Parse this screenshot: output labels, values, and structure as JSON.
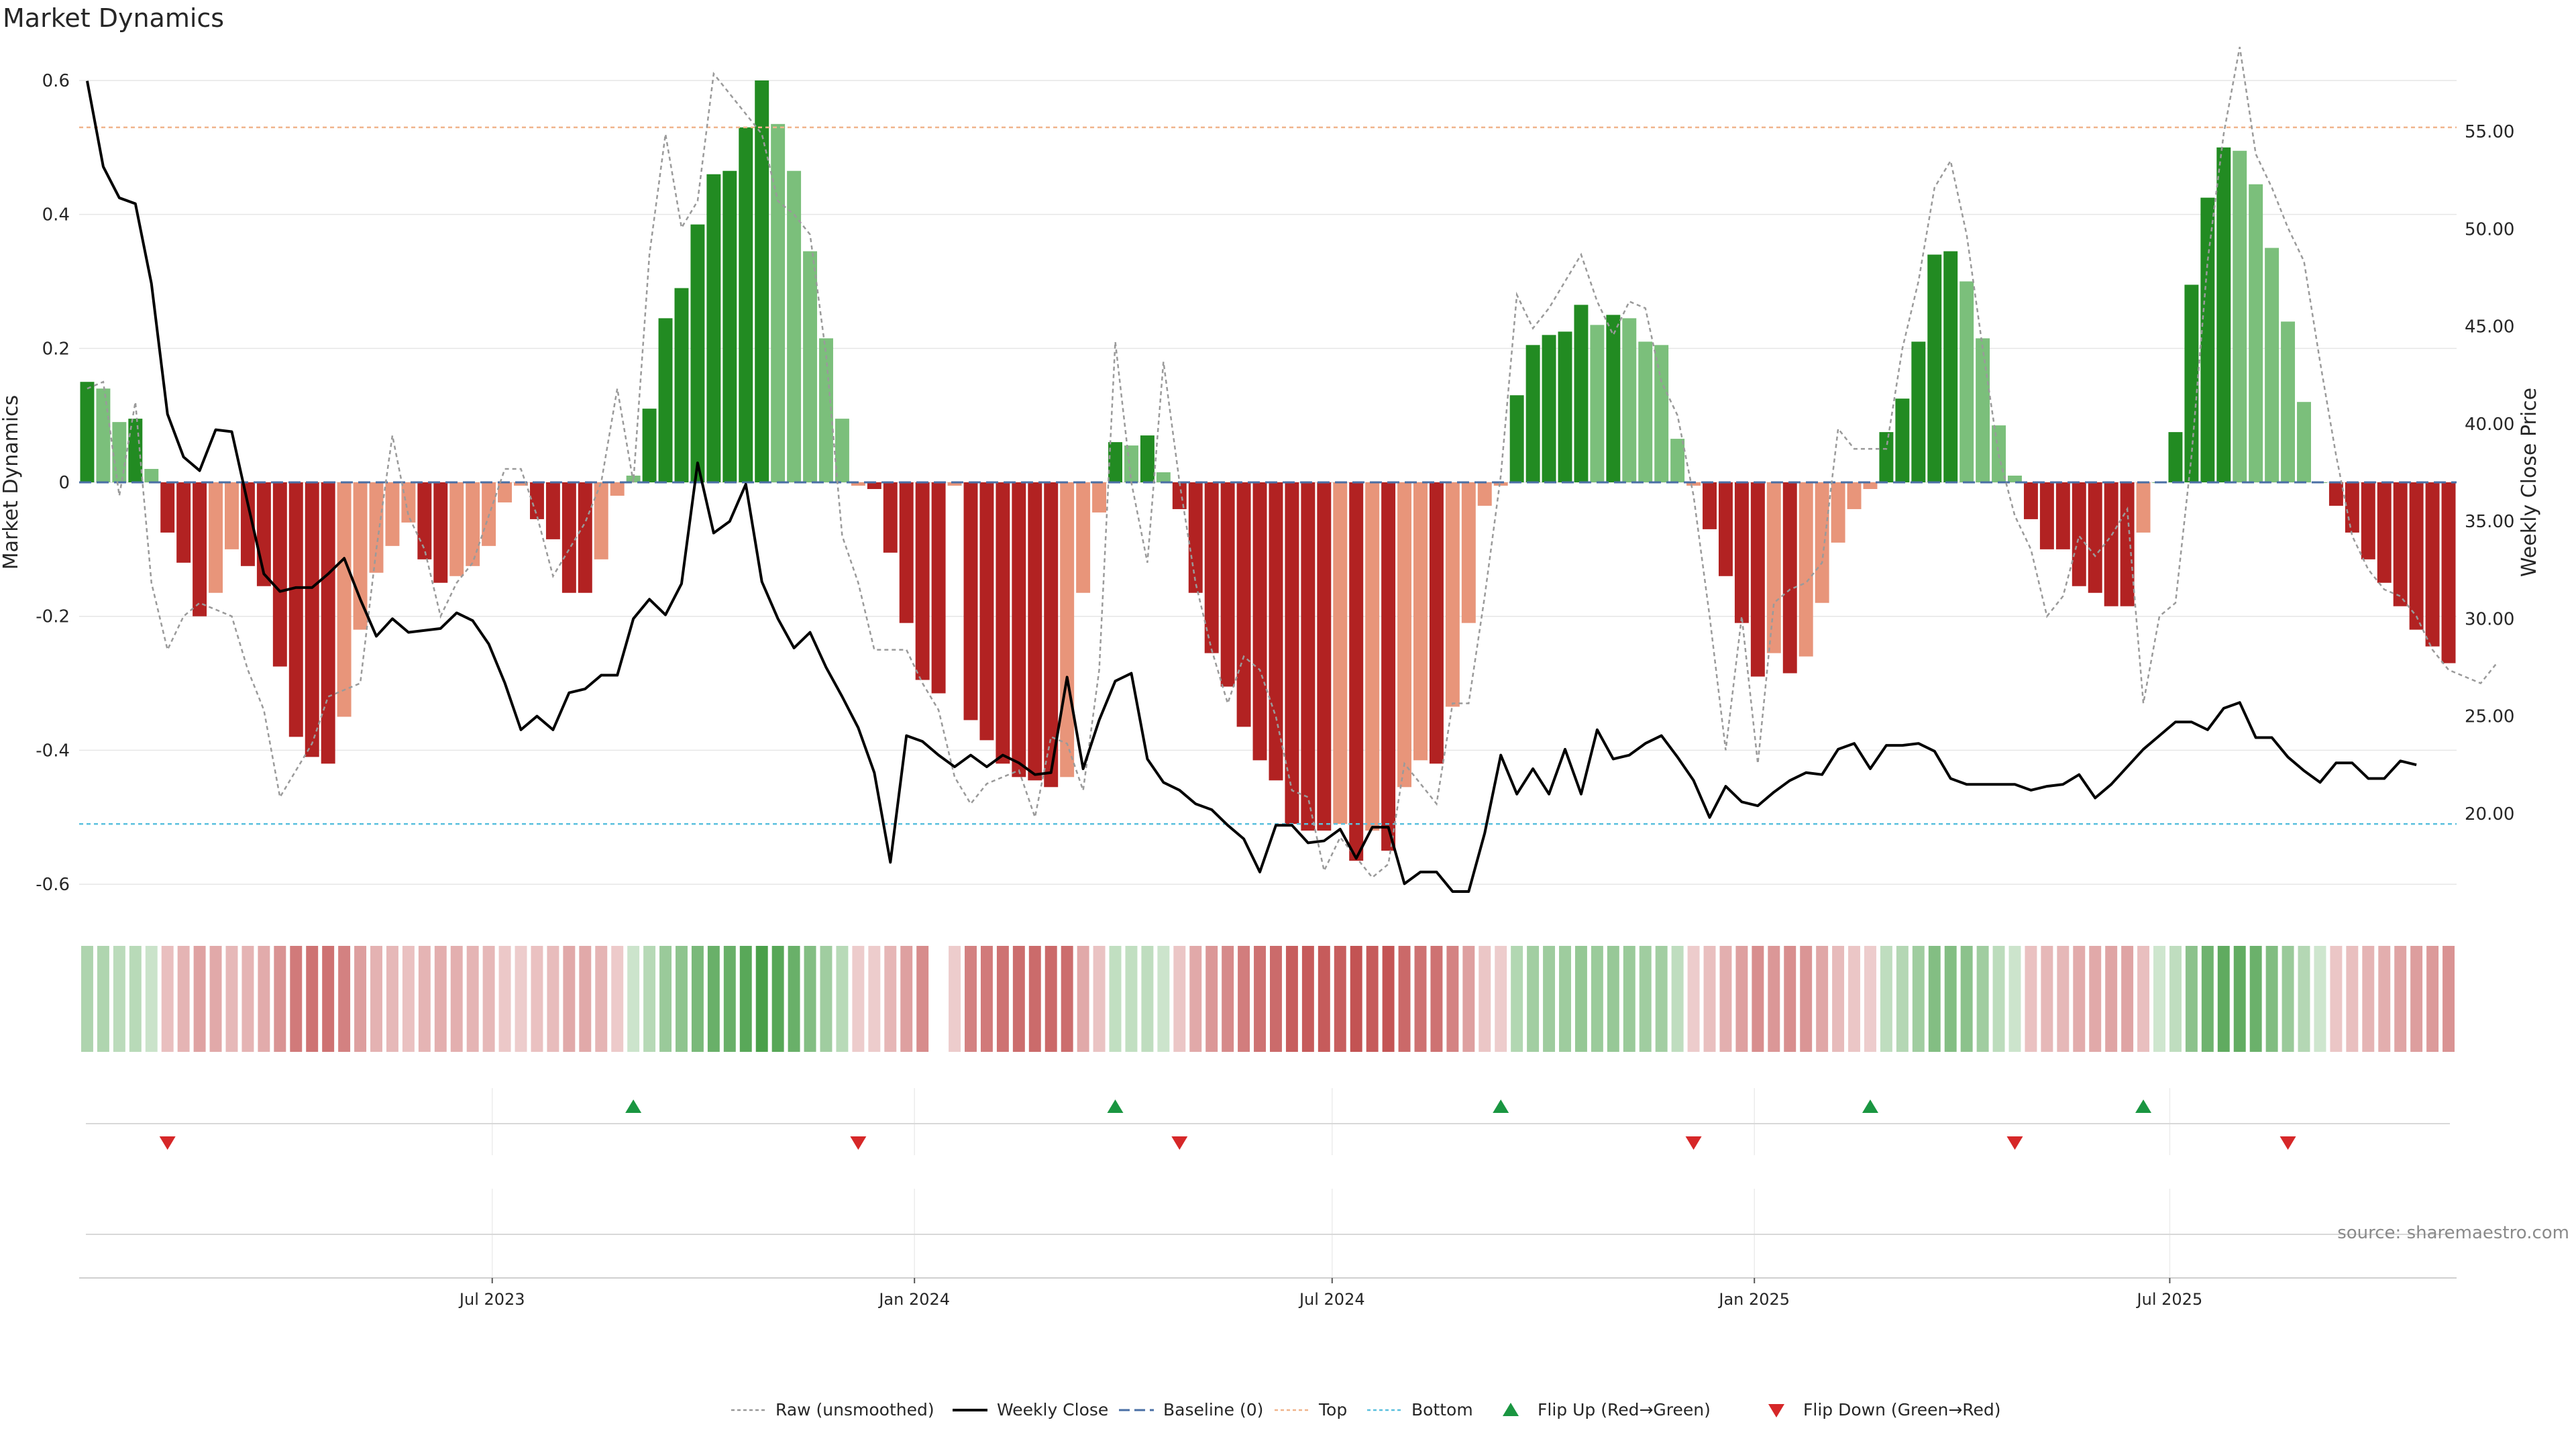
{
  "chart_data": {
    "type": "bar",
    "title": "Market Dynamics",
    "ylabel": "Market Dynamics",
    "y2label": "Weekly Close Price",
    "ylim": [
      -0.64,
      0.64
    ],
    "y2lim": [
      15.0,
      59.0
    ],
    "yticks": [
      {
        "v": 0.6,
        "label": "0.6"
      },
      {
        "v": 0.4,
        "label": "0.4"
      },
      {
        "v": 0.2,
        "label": "0.2"
      },
      {
        "v": 0,
        "label": "0"
      },
      {
        "v": -0.2,
        "label": "-0.2"
      },
      {
        "v": -0.4,
        "label": "-0.4"
      },
      {
        "v": -0.6,
        "label": "-0.6"
      }
    ],
    "y2ticks": [
      {
        "v": 55,
        "label": "55.00"
      },
      {
        "v": 50,
        "label": "50.00"
      },
      {
        "v": 45,
        "label": "45.00"
      },
      {
        "v": 40,
        "label": "40.00"
      },
      {
        "v": 35,
        "label": "35.00"
      },
      {
        "v": 30,
        "label": "30.00"
      },
      {
        "v": 25,
        "label": "25.00"
      },
      {
        "v": 20,
        "label": "20.00"
      }
    ],
    "x_start": "2023-01-02",
    "x_end": "2025-11-03",
    "xticks": [
      {
        "date": "2023-07-01",
        "label": "Jul 2023"
      },
      {
        "date": "2024-01-01",
        "label": "Jan 2024"
      },
      {
        "date": "2024-07-01",
        "label": "Jul 2024"
      },
      {
        "date": "2025-01-01",
        "label": "Jan 2025"
      },
      {
        "date": "2025-07-01",
        "label": "Jul 2025"
      }
    ],
    "top_line": 0.53,
    "bottom_line": -0.51,
    "baseline": 0,
    "source": "source: sharemaestro.com",
    "colors": {
      "up_strong": "#228b22",
      "up_fading": "#7bbf7b",
      "down_strong": "#b22222",
      "down_fading": "#e8957a",
      "raw": "#9a9a9a",
      "close": "#000000",
      "baseline": "#4a6fa5",
      "top": "#f0b48c",
      "bottom": "#5bc0de",
      "flip_up": "#1a9641",
      "flip_down": "#d62728"
    },
    "series": [
      {
        "name": "Market Dynamics",
        "values": [
          0.15,
          0.14,
          0.09,
          0.095,
          0.02,
          -0.075,
          -0.12,
          -0.2,
          -0.165,
          -0.1,
          -0.125,
          -0.155,
          -0.275,
          -0.38,
          -0.41,
          -0.42,
          -0.35,
          -0.22,
          -0.135,
          -0.095,
          -0.06,
          -0.115,
          -0.15,
          -0.14,
          -0.125,
          -0.095,
          -0.03,
          -0.005,
          -0.055,
          -0.085,
          -0.165,
          -0.165,
          -0.115,
          -0.02,
          0.01,
          0.11,
          0.245,
          0.29,
          0.385,
          0.46,
          0.465,
          0.53,
          0.6,
          0.535,
          0.465,
          0.345,
          0.215,
          0.095,
          -0.005,
          -0.01,
          -0.105,
          -0.21,
          -0.295,
          -0.315,
          -0.005,
          -0.355,
          -0.385,
          -0.42,
          -0.44,
          -0.445,
          -0.455,
          -0.44,
          -0.165,
          -0.045,
          0.06,
          0.055,
          0.07,
          0.015,
          -0.04,
          -0.165,
          -0.255,
          -0.305,
          -0.365,
          -0.415,
          -0.445,
          -0.51,
          -0.52,
          -0.52,
          -0.51,
          -0.565,
          -0.52,
          -0.55,
          -0.455,
          -0.415,
          -0.42,
          -0.335,
          -0.21,
          -0.035,
          -0.005,
          0.13,
          0.205,
          0.22,
          0.225,
          0.265,
          0.235,
          0.25,
          0.245,
          0.21,
          0.205,
          0.065,
          -0.005,
          -0.07,
          -0.14,
          -0.21,
          -0.29,
          -0.255,
          -0.285,
          -0.26,
          -0.18,
          -0.09,
          -0.04,
          -0.01,
          0.075,
          0.125,
          0.21,
          0.34,
          0.345,
          0.3,
          0.215,
          0.085,
          0.01,
          -0.055,
          -0.1,
          -0.1,
          -0.155,
          -0.165,
          -0.185,
          -0.185,
          -0.075,
          0.0,
          0.075,
          0.295,
          0.425,
          0.5,
          0.495,
          0.445,
          0.35,
          0.24,
          0.12,
          0.0,
          -0.035,
          -0.075,
          -0.115,
          -0.15,
          -0.185,
          -0.22,
          -0.245,
          -0.27
        ]
      },
      {
        "name": "Raw (unsmoothed)",
        "values": [
          0.14,
          0.15,
          -0.02,
          0.12,
          -0.15,
          -0.25,
          -0.2,
          -0.18,
          -0.19,
          -0.2,
          -0.28,
          -0.34,
          -0.47,
          -0.43,
          -0.39,
          -0.32,
          -0.31,
          -0.3,
          -0.1,
          0.07,
          -0.05,
          -0.1,
          -0.2,
          -0.15,
          -0.12,
          -0.05,
          0.02,
          0.02,
          -0.05,
          -0.14,
          -0.1,
          -0.06,
          0.0,
          0.14,
          0.0,
          0.34,
          0.52,
          0.38,
          0.42,
          0.61,
          0.58,
          0.55,
          0.52,
          0.42,
          0.4,
          0.37,
          0.19,
          -0.08,
          -0.15,
          -0.25,
          -0.25,
          -0.25,
          -0.3,
          -0.34,
          -0.44,
          -0.48,
          -0.45,
          -0.44,
          -0.43,
          -0.5,
          -0.38,
          -0.39,
          -0.46,
          -0.28,
          0.21,
          0.0,
          -0.12,
          0.18,
          0.0,
          -0.15,
          -0.25,
          -0.33,
          -0.26,
          -0.28,
          -0.35,
          -0.46,
          -0.47,
          -0.58,
          -0.53,
          -0.56,
          -0.59,
          -0.57,
          -0.42,
          -0.45,
          -0.48,
          -0.33,
          -0.33,
          -0.17,
          0.01,
          0.28,
          0.23,
          0.26,
          0.3,
          0.34,
          0.27,
          0.22,
          0.27,
          0.26,
          0.15,
          0.1,
          -0.02,
          -0.2,
          -0.4,
          -0.2,
          -0.42,
          -0.18,
          -0.16,
          -0.15,
          -0.12,
          0.08,
          0.05,
          0.05,
          0.05,
          0.2,
          0.3,
          0.44,
          0.48,
          0.37,
          0.2,
          0.04,
          -0.05,
          -0.1,
          -0.2,
          -0.17,
          -0.08,
          -0.11,
          -0.08,
          -0.04,
          -0.33,
          -0.2,
          -0.18,
          0.04,
          0.33,
          0.52,
          0.65,
          0.49,
          0.44,
          0.38,
          0.33,
          0.18,
          0.04,
          -0.08,
          -0.13,
          -0.16,
          -0.17,
          -0.2,
          -0.25,
          -0.28,
          -0.29,
          -0.3,
          -0.27
        ]
      },
      {
        "name": "Weekly Close",
        "values": [
          57.6,
          53.2,
          51.6,
          51.3,
          47.2,
          40.5,
          38.3,
          37.6,
          39.7,
          39.6,
          35.9,
          32.3,
          31.4,
          31.6,
          31.6,
          32.3,
          33.1,
          31.0,
          29.1,
          30.0,
          29.3,
          29.4,
          29.5,
          30.3,
          29.9,
          28.7,
          26.7,
          24.3,
          25.0,
          24.3,
          26.2,
          26.4,
          27.1,
          27.1,
          30.0,
          31.0,
          30.2,
          31.8,
          38.0,
          34.4,
          35.0,
          36.9,
          31.9,
          30.0,
          28.5,
          29.3,
          27.5,
          26.0,
          24.4,
          22.1,
          17.5,
          24.0,
          23.7,
          23.0,
          22.4,
          23.0,
          22.4,
          23.0,
          22.6,
          22.0,
          22.1,
          27.0,
          22.3,
          24.8,
          26.8,
          27.2,
          22.8,
          21.6,
          21.2,
          20.5,
          20.2,
          19.4,
          18.7,
          17.0,
          19.4,
          19.4,
          18.5,
          18.6,
          19.2,
          17.7,
          19.3,
          19.3,
          16.4,
          17.0,
          17.0,
          16.0,
          16.0,
          19.0,
          23.0,
          21.0,
          22.3,
          21.0,
          23.3,
          21.0,
          24.3,
          22.8,
          23.0,
          23.6,
          24.0,
          22.9,
          21.7,
          19.8,
          21.4,
          20.6,
          20.4,
          21.1,
          21.7,
          22.1,
          22.0,
          23.3,
          23.6,
          22.3,
          23.5,
          23.5,
          23.6,
          23.2,
          21.8,
          21.5,
          21.5,
          21.5,
          21.5,
          21.2,
          21.4,
          21.5,
          22.0,
          20.8,
          21.5,
          22.4,
          23.3,
          24.0,
          24.7,
          24.7,
          24.3,
          25.4,
          25.7,
          23.9,
          23.9,
          22.9,
          22.2,
          21.6,
          22.6,
          22.6,
          21.8,
          21.8,
          22.7,
          22.5
        ]
      }
    ],
    "series_bands": [
      {
        "name": "Flip Up (Red→Green)",
        "marker": "triangle-up"
      },
      {
        "name": "Flip Down (Green→Red)",
        "marker": "triangle-down"
      }
    ],
    "flip_up_index": [
      34,
      64,
      88,
      111,
      128
    ],
    "flip_down_index": [
      5,
      48,
      68,
      100,
      120,
      137
    ],
    "legend": [
      {
        "key": "raw",
        "label": "Raw (unsmoothed)"
      },
      {
        "key": "close",
        "label": "Weekly Close"
      },
      {
        "key": "baseline",
        "label": "Baseline (0)"
      },
      {
        "key": "top",
        "label": "Top"
      },
      {
        "key": "bottom",
        "label": "Bottom"
      },
      {
        "key": "flip_up",
        "label": "Flip Up (Red→Green)"
      },
      {
        "key": "flip_down",
        "label": "Flip Down (Green→Red)"
      }
    ],
    "legend_position": "bottom-center",
    "grid": true
  }
}
